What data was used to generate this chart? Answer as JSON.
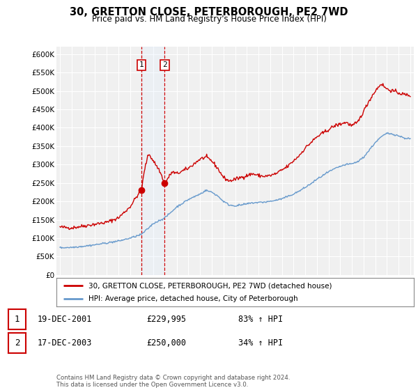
{
  "title": "30, GRETTON CLOSE, PETERBOROUGH, PE2 7WD",
  "subtitle": "Price paid vs. HM Land Registry's House Price Index (HPI)",
  "ylabel_ticks": [
    "£0",
    "£50K",
    "£100K",
    "£150K",
    "£200K",
    "£250K",
    "£300K",
    "£350K",
    "£400K",
    "£450K",
    "£500K",
    "£550K",
    "£600K"
  ],
  "ytick_vals": [
    0,
    50000,
    100000,
    150000,
    200000,
    250000,
    300000,
    350000,
    400000,
    450000,
    500000,
    550000,
    600000
  ],
  "ylim": [
    0,
    620000
  ],
  "xlim_start": 1994.7,
  "xlim_end": 2025.3,
  "red_color": "#cc0000",
  "blue_color": "#6699cc",
  "shade_color": "#ddeeff",
  "legend_label_red": "30, GRETTON CLOSE, PETERBOROUGH, PE2 7WD (detached house)",
  "legend_label_blue": "HPI: Average price, detached house, City of Peterborough",
  "transaction1_date": "19-DEC-2001",
  "transaction1_price": "£229,995",
  "transaction1_hpi": "83% ↑ HPI",
  "transaction1_year": 2001.97,
  "transaction2_date": "17-DEC-2003",
  "transaction2_price": "£250,000",
  "transaction2_hpi": "34% ↑ HPI",
  "transaction2_year": 2003.97,
  "footer": "Contains HM Land Registry data © Crown copyright and database right 2024.\nThis data is licensed under the Open Government Licence v3.0.",
  "background_color": "#ffffff",
  "plot_bg_color": "#f0f0f0",
  "grid_color": "#ffffff",
  "sale1_value": 229995,
  "sale2_value": 250000,
  "red_keypoints_x": [
    1995.0,
    1996.0,
    1997.0,
    1998.0,
    1999.0,
    2000.0,
    2001.0,
    2001.5,
    2001.97,
    2002.3,
    2002.6,
    2003.0,
    2003.5,
    2003.97,
    2004.3,
    2004.6,
    2005.0,
    2006.0,
    2007.0,
    2007.5,
    2008.0,
    2008.5,
    2009.0,
    2009.5,
    2010.0,
    2010.5,
    2011.0,
    2011.5,
    2012.0,
    2012.5,
    2013.0,
    2013.5,
    2014.0,
    2014.5,
    2015.0,
    2015.5,
    2016.0,
    2016.5,
    2017.0,
    2017.5,
    2018.0,
    2018.5,
    2019.0,
    2019.5,
    2020.0,
    2020.5,
    2021.0,
    2021.5,
    2022.0,
    2022.5,
    2023.0,
    2023.5,
    2024.0,
    2024.5,
    2025.0
  ],
  "red_keypoints_y": [
    130000,
    128000,
    133000,
    138000,
    143000,
    155000,
    185000,
    210000,
    229995,
    295000,
    330000,
    310000,
    285000,
    250000,
    265000,
    280000,
    275000,
    290000,
    315000,
    320000,
    310000,
    290000,
    265000,
    255000,
    260000,
    265000,
    270000,
    275000,
    270000,
    268000,
    270000,
    275000,
    285000,
    295000,
    310000,
    325000,
    345000,
    360000,
    375000,
    385000,
    395000,
    405000,
    410000,
    415000,
    405000,
    415000,
    445000,
    475000,
    500000,
    520000,
    505000,
    500000,
    495000,
    490000,
    488000
  ],
  "blue_keypoints_x": [
    1995.0,
    1996.0,
    1997.0,
    1998.0,
    1999.0,
    2000.0,
    2001.0,
    2001.97,
    2002.5,
    2003.0,
    2003.97,
    2004.5,
    2005.0,
    2006.0,
    2007.0,
    2007.5,
    2008.0,
    2008.5,
    2009.0,
    2009.5,
    2010.0,
    2010.5,
    2011.0,
    2011.5,
    2012.0,
    2012.5,
    2013.0,
    2013.5,
    2014.0,
    2014.5,
    2015.0,
    2015.5,
    2016.0,
    2016.5,
    2017.0,
    2017.5,
    2018.0,
    2018.5,
    2019.0,
    2019.5,
    2020.0,
    2020.5,
    2021.0,
    2021.5,
    2022.0,
    2022.5,
    2023.0,
    2023.5,
    2024.0,
    2024.5,
    2025.0
  ],
  "blue_keypoints_y": [
    74000,
    75000,
    78000,
    82000,
    87000,
    92000,
    100000,
    110000,
    125000,
    140000,
    155000,
    170000,
    185000,
    205000,
    220000,
    230000,
    225000,
    215000,
    200000,
    190000,
    188000,
    190000,
    193000,
    196000,
    197000,
    198000,
    200000,
    203000,
    207000,
    213000,
    220000,
    228000,
    238000,
    248000,
    260000,
    270000,
    280000,
    288000,
    295000,
    300000,
    302000,
    308000,
    320000,
    340000,
    360000,
    375000,
    385000,
    383000,
    378000,
    372000,
    370000
  ]
}
